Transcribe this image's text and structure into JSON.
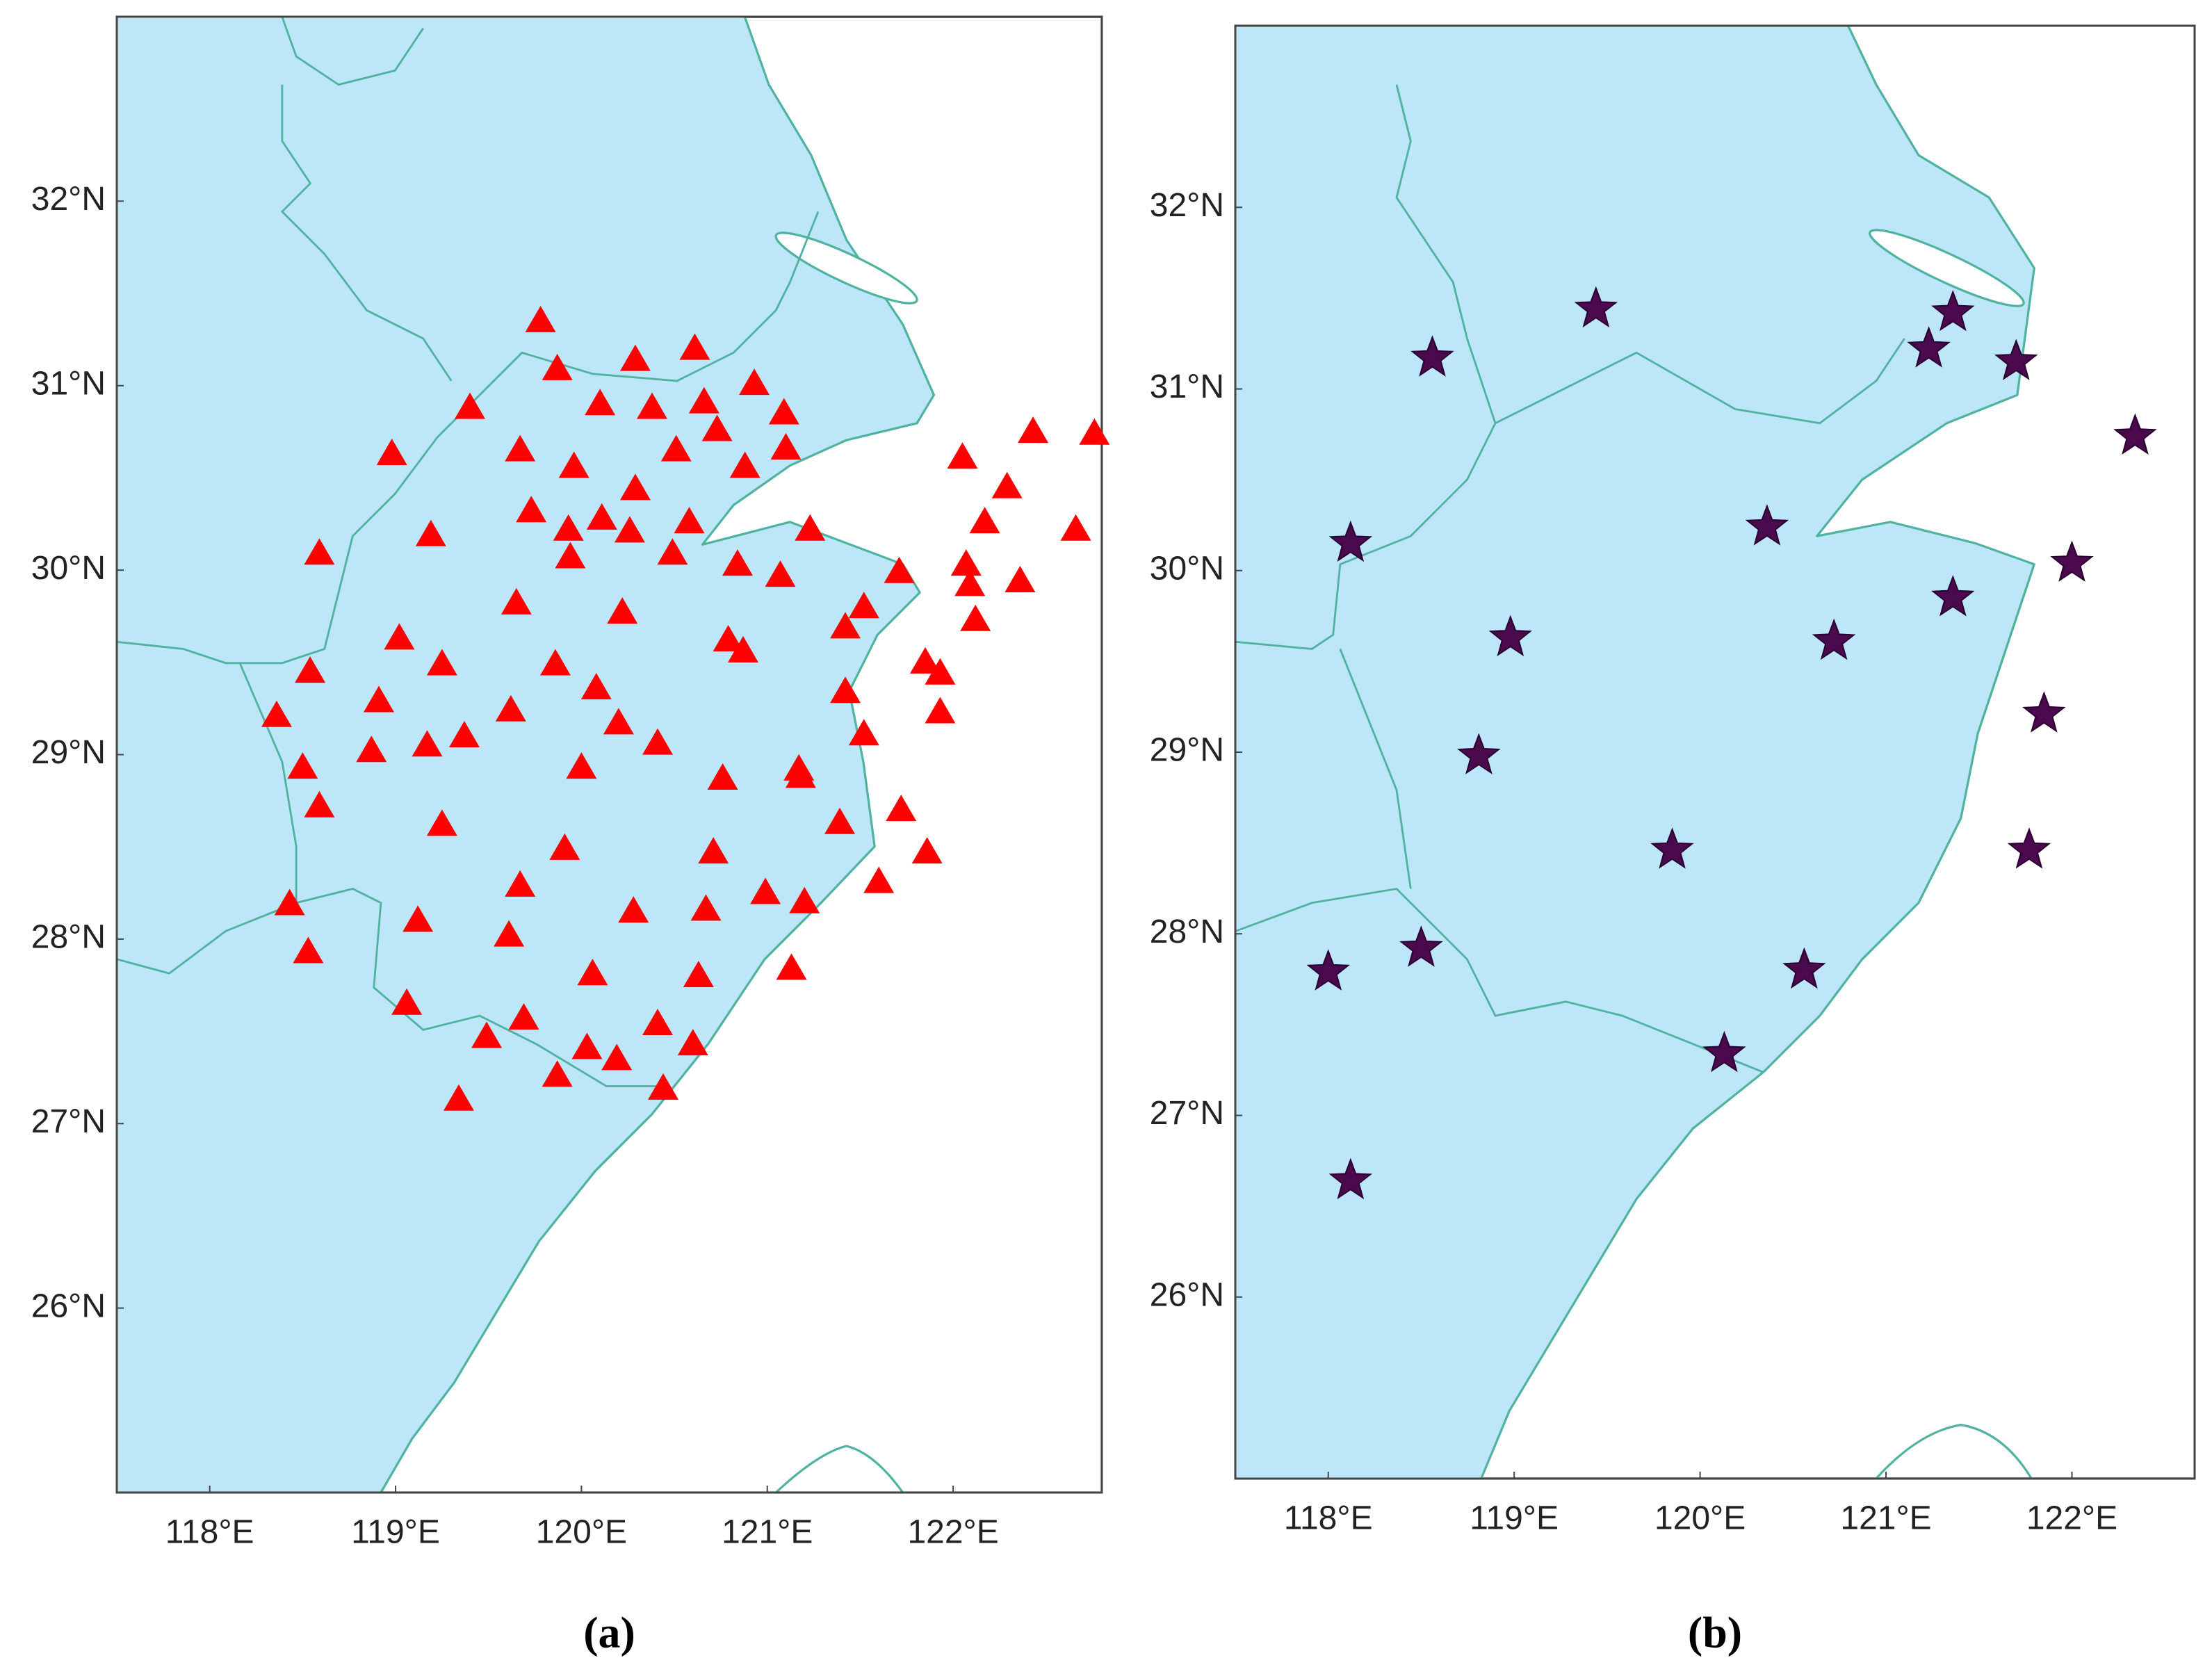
{
  "chart_data": [
    {
      "type": "scatter",
      "caption": "(a)",
      "marker": "triangle",
      "color": "#ff0000",
      "xlim": [
        117.5,
        122.8
      ],
      "ylim": [
        25,
        33
      ],
      "xticks": [
        {
          "value": 118,
          "label": "118°E"
        },
        {
          "value": 119,
          "label": "119°E"
        },
        {
          "value": 120,
          "label": "120°E"
        },
        {
          "value": 121,
          "label": "121°E"
        },
        {
          "value": 122,
          "label": "122°E"
        }
      ],
      "yticks": [
        {
          "value": 26,
          "label": "26°N"
        },
        {
          "value": 27,
          "label": "27°N"
        },
        {
          "value": 28,
          "label": "28°N"
        },
        {
          "value": 29,
          "label": "29°N"
        },
        {
          "value": 30,
          "label": "30°N"
        },
        {
          "value": 31,
          "label": "31°N"
        },
        {
          "value": 32,
          "label": "32°N"
        }
      ],
      "x": [
        119.78,
        120.29,
        120.61,
        119.87,
        120.93,
        119.4,
        120.1,
        120.38,
        120.66,
        121.09,
        120.73,
        118.98,
        119.67,
        119.96,
        120.51,
        120.88,
        121.1,
        119.73,
        120.11,
        120.29,
        120.58,
        119.19,
        119.93,
        120.26,
        121.23,
        118.59,
        119.94,
        120.49,
        120.84,
        121.07,
        121.71,
        119.65,
        120.22,
        121.42,
        121.52,
        119.02,
        119.86,
        118.54,
        119.25,
        120.79,
        120.87,
        121.85,
        121.93,
        118.91,
        119.62,
        120.08,
        118.36,
        120.2,
        121.52,
        121.42,
        121.93,
        119.37,
        119.17,
        118.87,
        120.41,
        118.5,
        120.0,
        120.76,
        121.17,
        121.18,
        118.59,
        119.25,
        121.72,
        121.39,
        119.91,
        120.71,
        121.86,
        119.67,
        121.6,
        118.43,
        119.12,
        119.61,
        120.28,
        120.67,
        120.99,
        121.2,
        118.53,
        120.06,
        120.63,
        121.13,
        119.06,
        119.69,
        119.49,
        120.41,
        120.03,
        120.6,
        120.19,
        119.87,
        120.44,
        119.34,
        122.05,
        122.43,
        122.76,
        122.29,
        122.17,
        122.66,
        122.07,
        122.09,
        122.36,
        122.12
      ],
      "y": [
        31.35,
        31.14,
        31.2,
        31.09,
        31.01,
        30.88,
        30.9,
        30.88,
        30.91,
        30.85,
        30.76,
        30.63,
        30.65,
        30.56,
        30.65,
        30.56,
        30.66,
        30.32,
        30.28,
        30.44,
        30.26,
        30.19,
        30.22,
        30.21,
        30.22,
        30.09,
        30.07,
        30.09,
        30.03,
        29.97,
        29.99,
        29.82,
        29.77,
        29.69,
        29.8,
        29.63,
        29.49,
        29.45,
        29.49,
        29.62,
        29.56,
        29.5,
        29.44,
        29.29,
        29.24,
        29.36,
        29.21,
        29.17,
        29.11,
        29.34,
        29.23,
        29.1,
        29.05,
        29.02,
        29.06,
        28.93,
        28.93,
        28.87,
        28.92,
        28.88,
        28.72,
        28.62,
        28.7,
        28.63,
        28.49,
        28.47,
        28.47,
        28.29,
        28.31,
        28.19,
        28.1,
        28.02,
        28.15,
        28.16,
        28.25,
        28.2,
        27.93,
        27.81,
        27.8,
        27.84,
        27.65,
        27.57,
        27.47,
        27.54,
        27.41,
        27.43,
        27.35,
        27.26,
        27.19,
        27.13,
        30.61,
        30.75,
        30.74,
        30.45,
        30.26,
        30.22,
        30.03,
        29.92,
        29.94,
        29.73
      ]
    },
    {
      "type": "scatter",
      "caption": "(b)",
      "marker": "star",
      "color": "#4b0a4e",
      "xlim": [
        117.5,
        122.66
      ],
      "ylim": [
        25,
        33
      ],
      "xticks": [
        {
          "value": 118,
          "label": "118°E"
        },
        {
          "value": 119,
          "label": "119°E"
        },
        {
          "value": 120,
          "label": "120°E"
        },
        {
          "value": 121,
          "label": "121°E"
        },
        {
          "value": 122,
          "label": "122°E"
        }
      ],
      "yticks": [
        {
          "value": 26,
          "label": "26°N"
        },
        {
          "value": 27,
          "label": "27°N"
        },
        {
          "value": 28,
          "label": "28°N"
        },
        {
          "value": 29,
          "label": "29°N"
        },
        {
          "value": 30,
          "label": "30°N"
        },
        {
          "value": 31,
          "label": "31°N"
        },
        {
          "value": 32,
          "label": "32°N"
        }
      ],
      "x": [
        119.44,
        118.56,
        121.36,
        121.23,
        121.7,
        122.34,
        118.12,
        120.36,
        122.0,
        118.98,
        120.72,
        121.36,
        121.85,
        118.81,
        119.85,
        121.77,
        118.5,
        118.0,
        120.56,
        120.13,
        118.12
      ],
      "y": [
        31.44,
        31.17,
        31.42,
        31.22,
        31.15,
        30.74,
        30.15,
        30.24,
        30.04,
        29.63,
        29.61,
        29.85,
        29.21,
        28.98,
        28.46,
        28.46,
        27.92,
        27.79,
        27.8,
        27.34,
        26.64
      ]
    }
  ]
}
